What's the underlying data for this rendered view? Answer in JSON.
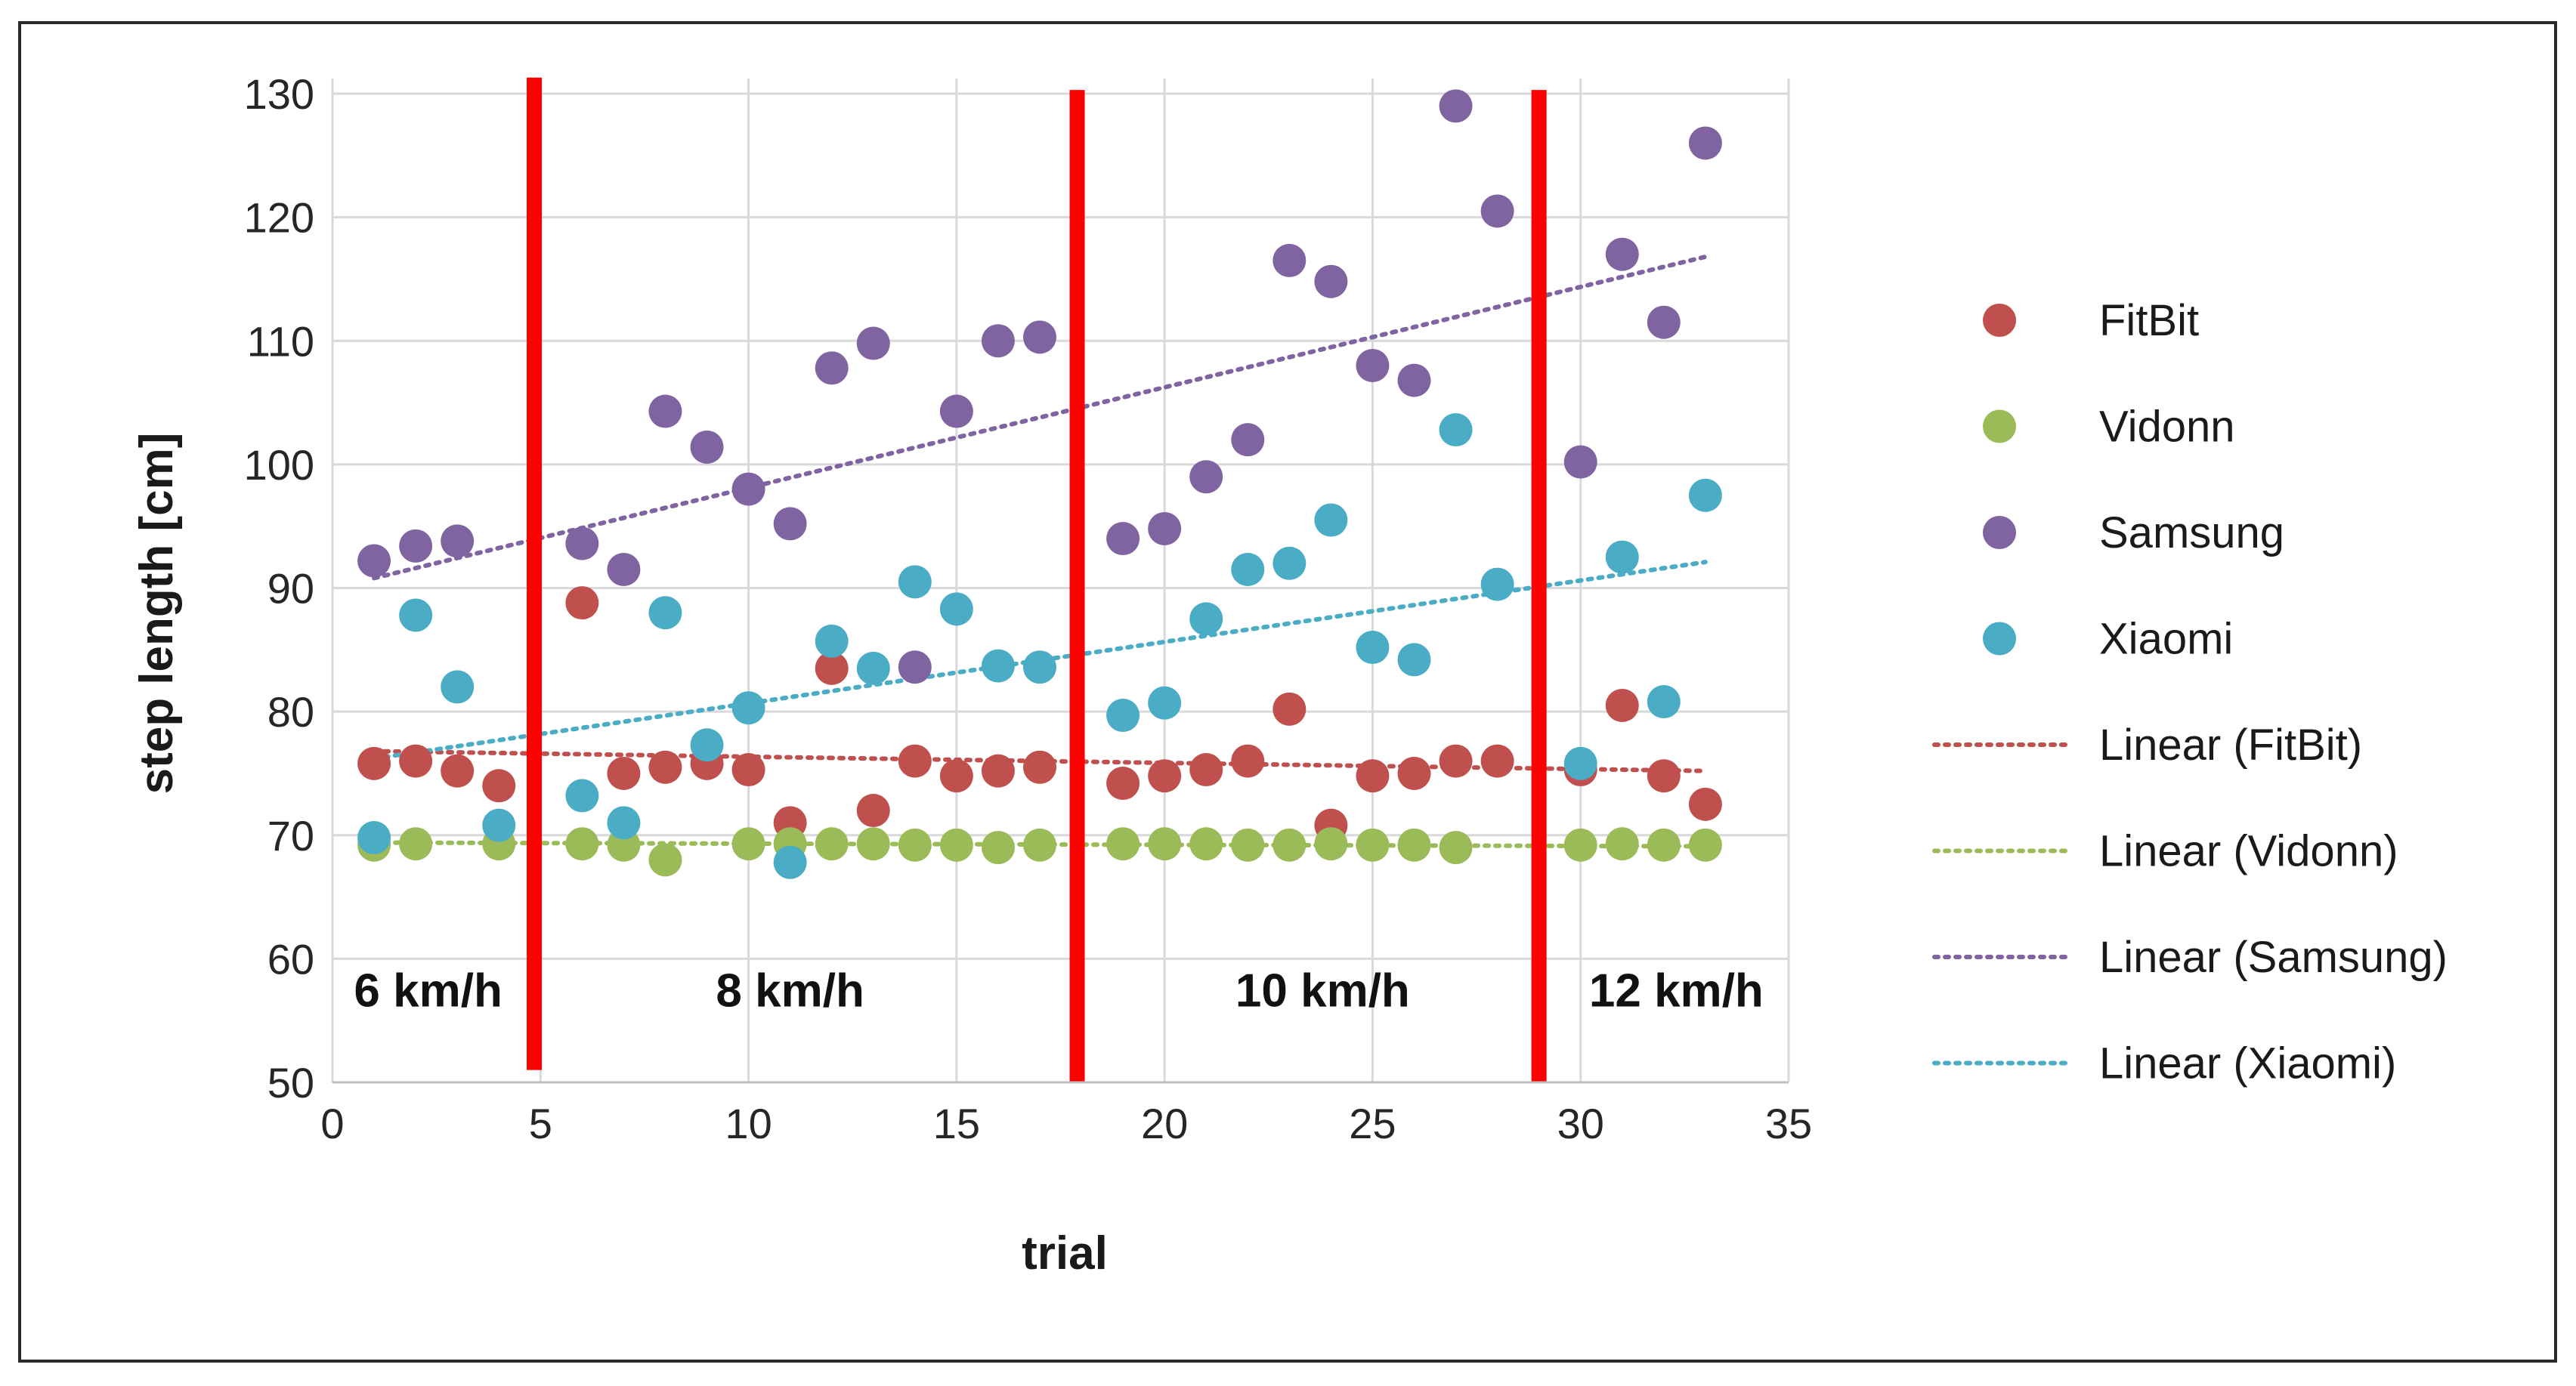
{
  "chart_data": {
    "type": "scatter",
    "title": "",
    "xlabel": "trial",
    "ylabel": "step length [cm]",
    "xlim": [
      0,
      35
    ],
    "ylim": [
      50,
      130
    ],
    "x_ticks": [
      0,
      5,
      10,
      15,
      20,
      25,
      30,
      35
    ],
    "y_ticks": [
      50,
      60,
      70,
      80,
      90,
      100,
      110,
      120,
      130
    ],
    "grid": true,
    "legend_position": "right",
    "series": [
      {
        "name": "FitBit",
        "color": "#c0504d",
        "points": [
          [
            1,
            75.8
          ],
          [
            2,
            76.0
          ],
          [
            3,
            75.2
          ],
          [
            4,
            74.0
          ],
          [
            6,
            88.8
          ],
          [
            7,
            75.0
          ],
          [
            8,
            75.5
          ],
          [
            9,
            75.8
          ],
          [
            10,
            75.3
          ],
          [
            11,
            71.0
          ],
          [
            12,
            83.5
          ],
          [
            13,
            72.0
          ],
          [
            14,
            76.0
          ],
          [
            15,
            74.8
          ],
          [
            16,
            75.2
          ],
          [
            17,
            75.5
          ],
          [
            19,
            74.2
          ],
          [
            20,
            74.8
          ],
          [
            21,
            75.3
          ],
          [
            22,
            76.0
          ],
          [
            23,
            80.2
          ],
          [
            24,
            70.8
          ],
          [
            25,
            74.8
          ],
          [
            26,
            75.0
          ],
          [
            27,
            76.0
          ],
          [
            28,
            76.0
          ],
          [
            30,
            75.3
          ],
          [
            31,
            80.5
          ],
          [
            32,
            74.8
          ],
          [
            33,
            72.5
          ]
        ]
      },
      {
        "name": "Vidonn",
        "color": "#9bbb59",
        "points": [
          [
            1,
            69.2
          ],
          [
            2,
            69.3
          ],
          [
            4,
            69.3
          ],
          [
            6,
            69.3
          ],
          [
            7,
            69.2
          ],
          [
            8,
            68.0
          ],
          [
            10,
            69.3
          ],
          [
            11,
            69.3
          ],
          [
            12,
            69.3
          ],
          [
            13,
            69.3
          ],
          [
            14,
            69.2
          ],
          [
            15,
            69.2
          ],
          [
            16,
            69.0
          ],
          [
            17,
            69.2
          ],
          [
            19,
            69.3
          ],
          [
            20,
            69.3
          ],
          [
            21,
            69.3
          ],
          [
            22,
            69.2
          ],
          [
            23,
            69.2
          ],
          [
            24,
            69.3
          ],
          [
            25,
            69.2
          ],
          [
            26,
            69.2
          ],
          [
            27,
            69.0
          ],
          [
            30,
            69.2
          ],
          [
            31,
            69.3
          ],
          [
            32,
            69.2
          ],
          [
            33,
            69.2
          ]
        ]
      },
      {
        "name": "Samsung",
        "color": "#8064a2",
        "points": [
          [
            1,
            92.2
          ],
          [
            2,
            93.4
          ],
          [
            3,
            93.8
          ],
          [
            6,
            93.6
          ],
          [
            7,
            91.5
          ],
          [
            8,
            104.3
          ],
          [
            9,
            101.4
          ],
          [
            10,
            98.0
          ],
          [
            11,
            95.2
          ],
          [
            12,
            107.8
          ],
          [
            13,
            109.8
          ],
          [
            14,
            83.6
          ],
          [
            15,
            104.3
          ],
          [
            16,
            110.0
          ],
          [
            17,
            110.3
          ],
          [
            19,
            94.0
          ],
          [
            20,
            94.8
          ],
          [
            21,
            99.0
          ],
          [
            22,
            102.0
          ],
          [
            23,
            116.5
          ],
          [
            24,
            114.8
          ],
          [
            25,
            108.0
          ],
          [
            26,
            106.8
          ],
          [
            27,
            129.0
          ],
          [
            28,
            120.5
          ],
          [
            30,
            100.2
          ],
          [
            31,
            117.0
          ],
          [
            32,
            111.5
          ],
          [
            33,
            126.0
          ]
        ]
      },
      {
        "name": "Xiaomi",
        "color": "#4bacc6",
        "points": [
          [
            1,
            69.8
          ],
          [
            2,
            87.8
          ],
          [
            3,
            82.0
          ],
          [
            4,
            70.8
          ],
          [
            6,
            73.2
          ],
          [
            7,
            71.0
          ],
          [
            8,
            88.0
          ],
          [
            9,
            77.3
          ],
          [
            10,
            80.3
          ],
          [
            11,
            67.8
          ],
          [
            12,
            85.7
          ],
          [
            13,
            83.5
          ],
          [
            14,
            90.5
          ],
          [
            15,
            88.3
          ],
          [
            16,
            83.7
          ],
          [
            17,
            83.6
          ],
          [
            19,
            79.7
          ],
          [
            20,
            80.7
          ],
          [
            21,
            87.5
          ],
          [
            22,
            91.5
          ],
          [
            23,
            92.0
          ],
          [
            24,
            95.5
          ],
          [
            25,
            85.2
          ],
          [
            26,
            84.2
          ],
          [
            27,
            102.8
          ],
          [
            28,
            90.3
          ],
          [
            30,
            75.8
          ],
          [
            31,
            92.5
          ],
          [
            32,
            80.8
          ],
          [
            33,
            97.5
          ]
        ]
      }
    ],
    "trendlines": [
      {
        "name": "Linear (FitBit)",
        "series": "FitBit",
        "color": "#c0504d",
        "x": [
          1,
          33
        ],
        "y": [
          76.8,
          75.2
        ]
      },
      {
        "name": "Linear (Vidonn)",
        "series": "Vidonn",
        "color": "#9bbb59",
        "x": [
          1,
          33
        ],
        "y": [
          69.4,
          69.1
        ]
      },
      {
        "name": "Linear (Samsung)",
        "series": "Samsung",
        "color": "#8064a2",
        "x": [
          1,
          33
        ],
        "y": [
          90.8,
          116.8
        ]
      },
      {
        "name": "Linear (Xiaomi)",
        "series": "Xiaomi",
        "color": "#4bacc6",
        "x": [
          1,
          33
        ],
        "y": [
          76.2,
          92.1
        ]
      }
    ],
    "separators": [
      {
        "x": 4.85,
        "y": [
          51,
          131.3
        ],
        "color": "#ff0000"
      },
      {
        "x": 17.9,
        "y": [
          50,
          130.3
        ],
        "color": "#ff0000"
      },
      {
        "x": 29.0,
        "y": [
          50,
          130.3
        ],
        "color": "#ff0000"
      }
    ],
    "annotations": [
      {
        "text": "6 km/h",
        "x": 2.3,
        "y": 57.6
      },
      {
        "text": "8 km/h",
        "x": 11.0,
        "y": 57.6
      },
      {
        "text": "10 km/h",
        "x": 23.8,
        "y": 57.6
      },
      {
        "text": "12 km/h",
        "x": 32.3,
        "y": 57.6
      }
    ],
    "legend": [
      "FitBit",
      "Vidonn",
      "Samsung",
      "Xiaomi",
      "Linear (FitBit)",
      "Linear (Vidonn)",
      "Linear (Samsung)",
      "Linear (Xiaomi)"
    ]
  }
}
